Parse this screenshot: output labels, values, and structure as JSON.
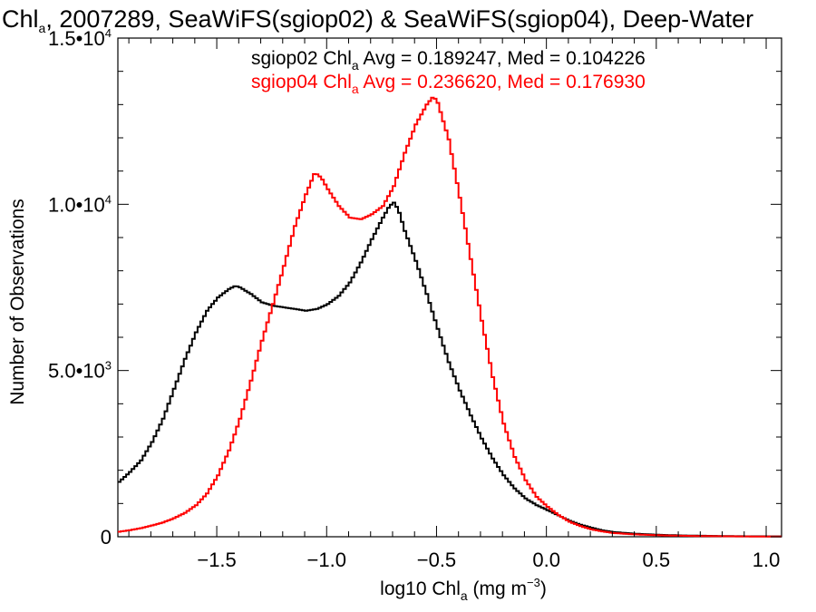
{
  "chart_data": {
    "type": "line",
    "title": {
      "prefix": "Chl",
      "subscript": "a",
      "rest": ", 2007289, SeaWiFS(sgiop02) & SeaWiFS(sgiop04), Deep-Water"
    },
    "xlabel": {
      "prefix": "log10 Chl",
      "subscript": "a",
      "units": " (mg m",
      "units_sup": "-3",
      "units_close": ")"
    },
    "ylabel": "Number of Observations",
    "xlim": [
      -1.95,
      1.07
    ],
    "ylim": [
      0,
      15000
    ],
    "x_ticks": [
      {
        "value": -1.5,
        "label": "-1.5"
      },
      {
        "value": -1.0,
        "label": "-1.0"
      },
      {
        "value": -0.5,
        "label": "-0.5"
      },
      {
        "value": 0.0,
        "label": "0.0"
      },
      {
        "value": 0.5,
        "label": "0.5"
      },
      {
        "value": 1.0,
        "label": "1.0"
      }
    ],
    "y_ticks": [
      {
        "value": 0,
        "label": "0",
        "exp": ""
      },
      {
        "value": 5000,
        "label": "5.0•10",
        "exp": "3"
      },
      {
        "value": 10000,
        "label": "1.0•10",
        "exp": "4"
      },
      {
        "value": 15000,
        "label": "1.5•10",
        "exp": "4"
      }
    ],
    "series": [
      {
        "name": "sgiop02",
        "color": "#000000",
        "stats": {
          "prefix": "sgiop02 Chl",
          "subscript": "a",
          "rest": " Avg = 0.189247, Med = 0.104226"
        },
        "points": [
          [
            -1.95,
            1650
          ],
          [
            -1.9,
            1950
          ],
          [
            -1.85,
            2300
          ],
          [
            -1.8,
            2850
          ],
          [
            -1.75,
            3550
          ],
          [
            -1.7,
            4450
          ],
          [
            -1.65,
            5350
          ],
          [
            -1.6,
            6150
          ],
          [
            -1.55,
            6800
          ],
          [
            -1.5,
            7200
          ],
          [
            -1.45,
            7450
          ],
          [
            -1.42,
            7550
          ],
          [
            -1.4,
            7500
          ],
          [
            -1.35,
            7300
          ],
          [
            -1.3,
            7050
          ],
          [
            -1.25,
            6950
          ],
          [
            -1.2,
            6900
          ],
          [
            -1.15,
            6850
          ],
          [
            -1.1,
            6800
          ],
          [
            -1.05,
            6850
          ],
          [
            -1.0,
            7000
          ],
          [
            -0.95,
            7250
          ],
          [
            -0.9,
            7650
          ],
          [
            -0.85,
            8250
          ],
          [
            -0.8,
            8950
          ],
          [
            -0.75,
            9600
          ],
          [
            -0.72,
            9950
          ],
          [
            -0.7,
            10050
          ],
          [
            -0.68,
            9850
          ],
          [
            -0.65,
            9200
          ],
          [
            -0.6,
            8300
          ],
          [
            -0.55,
            7300
          ],
          [
            -0.5,
            6250
          ],
          [
            -0.45,
            5250
          ],
          [
            -0.4,
            4400
          ],
          [
            -0.35,
            3650
          ],
          [
            -0.3,
            2950
          ],
          [
            -0.25,
            2350
          ],
          [
            -0.2,
            1850
          ],
          [
            -0.15,
            1450
          ],
          [
            -0.1,
            1150
          ],
          [
            -0.05,
            950
          ],
          [
            0.0,
            800
          ],
          [
            0.05,
            640
          ],
          [
            0.1,
            480
          ],
          [
            0.15,
            360
          ],
          [
            0.2,
            270
          ],
          [
            0.25,
            190
          ],
          [
            0.3,
            140
          ],
          [
            0.4,
            90
          ],
          [
            0.5,
            60
          ],
          [
            0.6,
            40
          ],
          [
            0.7,
            30
          ],
          [
            0.8,
            20
          ],
          [
            0.9,
            15
          ],
          [
            1.0,
            12
          ],
          [
            1.07,
            10
          ]
        ]
      },
      {
        "name": "sgiop04",
        "color": "#ff0000",
        "stats": {
          "prefix": "sgiop04 Chl",
          "subscript": "a",
          "rest": " Avg = 0.236620, Med = 0.176930"
        },
        "points": [
          [
            -1.95,
            150
          ],
          [
            -1.9,
            200
          ],
          [
            -1.85,
            260
          ],
          [
            -1.8,
            340
          ],
          [
            -1.75,
            430
          ],
          [
            -1.7,
            560
          ],
          [
            -1.65,
            720
          ],
          [
            -1.6,
            950
          ],
          [
            -1.55,
            1300
          ],
          [
            -1.5,
            1850
          ],
          [
            -1.45,
            2600
          ],
          [
            -1.4,
            3550
          ],
          [
            -1.35,
            4700
          ],
          [
            -1.3,
            5900
          ],
          [
            -1.25,
            7000
          ],
          [
            -1.2,
            8150
          ],
          [
            -1.15,
            9350
          ],
          [
            -1.1,
            10300
          ],
          [
            -1.06,
            10950
          ],
          [
            -1.03,
            10800
          ],
          [
            -1.0,
            10450
          ],
          [
            -0.95,
            9950
          ],
          [
            -0.9,
            9600
          ],
          [
            -0.85,
            9550
          ],
          [
            -0.8,
            9700
          ],
          [
            -0.75,
            9950
          ],
          [
            -0.7,
            10550
          ],
          [
            -0.65,
            11550
          ],
          [
            -0.6,
            12400
          ],
          [
            -0.55,
            13000
          ],
          [
            -0.52,
            13250
          ],
          [
            -0.5,
            13050
          ],
          [
            -0.45,
            11950
          ],
          [
            -0.4,
            10200
          ],
          [
            -0.35,
            8350
          ],
          [
            -0.3,
            6500
          ],
          [
            -0.25,
            4800
          ],
          [
            -0.2,
            3400
          ],
          [
            -0.15,
            2400
          ],
          [
            -0.1,
            1700
          ],
          [
            -0.05,
            1200
          ],
          [
            0.0,
            900
          ],
          [
            0.05,
            650
          ],
          [
            0.1,
            450
          ],
          [
            0.15,
            320
          ],
          [
            0.2,
            220
          ],
          [
            0.25,
            160
          ],
          [
            0.3,
            110
          ],
          [
            0.4,
            70
          ],
          [
            0.5,
            45
          ],
          [
            0.6,
            30
          ],
          [
            0.7,
            20
          ],
          [
            0.8,
            15
          ],
          [
            0.9,
            10
          ],
          [
            1.0,
            8
          ],
          [
            1.07,
            6
          ]
        ]
      }
    ]
  }
}
